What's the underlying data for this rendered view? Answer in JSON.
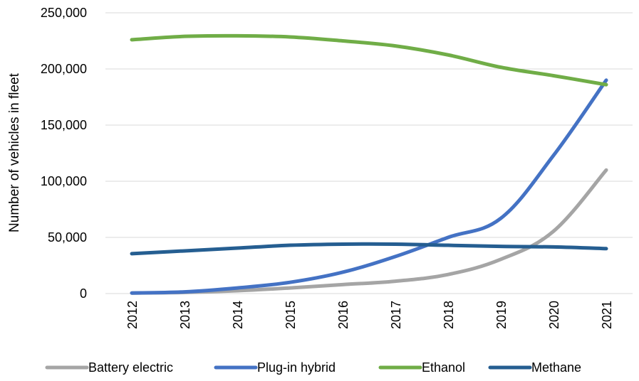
{
  "chart_data": {
    "type": "line",
    "title": "",
    "xlabel": "",
    "ylabel": "Number of vehicles in fleet",
    "ylim": [
      0,
      250000
    ],
    "y_ticks": [
      0,
      50000,
      100000,
      150000,
      200000,
      250000
    ],
    "y_tick_labels": [
      "0",
      "50,000",
      "100,000",
      "150,000",
      "200,000",
      "250,000"
    ],
    "categories": [
      "2012",
      "2013",
      "2014",
      "2015",
      "2016",
      "2017",
      "2018",
      "2019",
      "2020",
      "2021"
    ],
    "grid": true,
    "legend_position": "bottom",
    "series": [
      {
        "name": "Battery electric",
        "color": "#a5a5a5",
        "values": [
          500,
          1000,
          2500,
          5000,
          8000,
          11000,
          17000,
          30500,
          55500,
          110000
        ]
      },
      {
        "name": "Plug-in hybrid",
        "color": "#4472c4",
        "values": [
          500,
          1500,
          5000,
          10000,
          19000,
          33000,
          50000,
          67000,
          123000,
          190000
        ]
      },
      {
        "name": "Ethanol",
        "color": "#70ad47",
        "values": [
          226000,
          229000,
          229500,
          228500,
          225000,
          220500,
          212500,
          201500,
          194000,
          186000
        ]
      },
      {
        "name": "Methane",
        "color": "#255e91",
        "values": [
          35500,
          38000,
          40500,
          43000,
          44000,
          44000,
          43000,
          42000,
          41500,
          40000
        ]
      }
    ]
  }
}
